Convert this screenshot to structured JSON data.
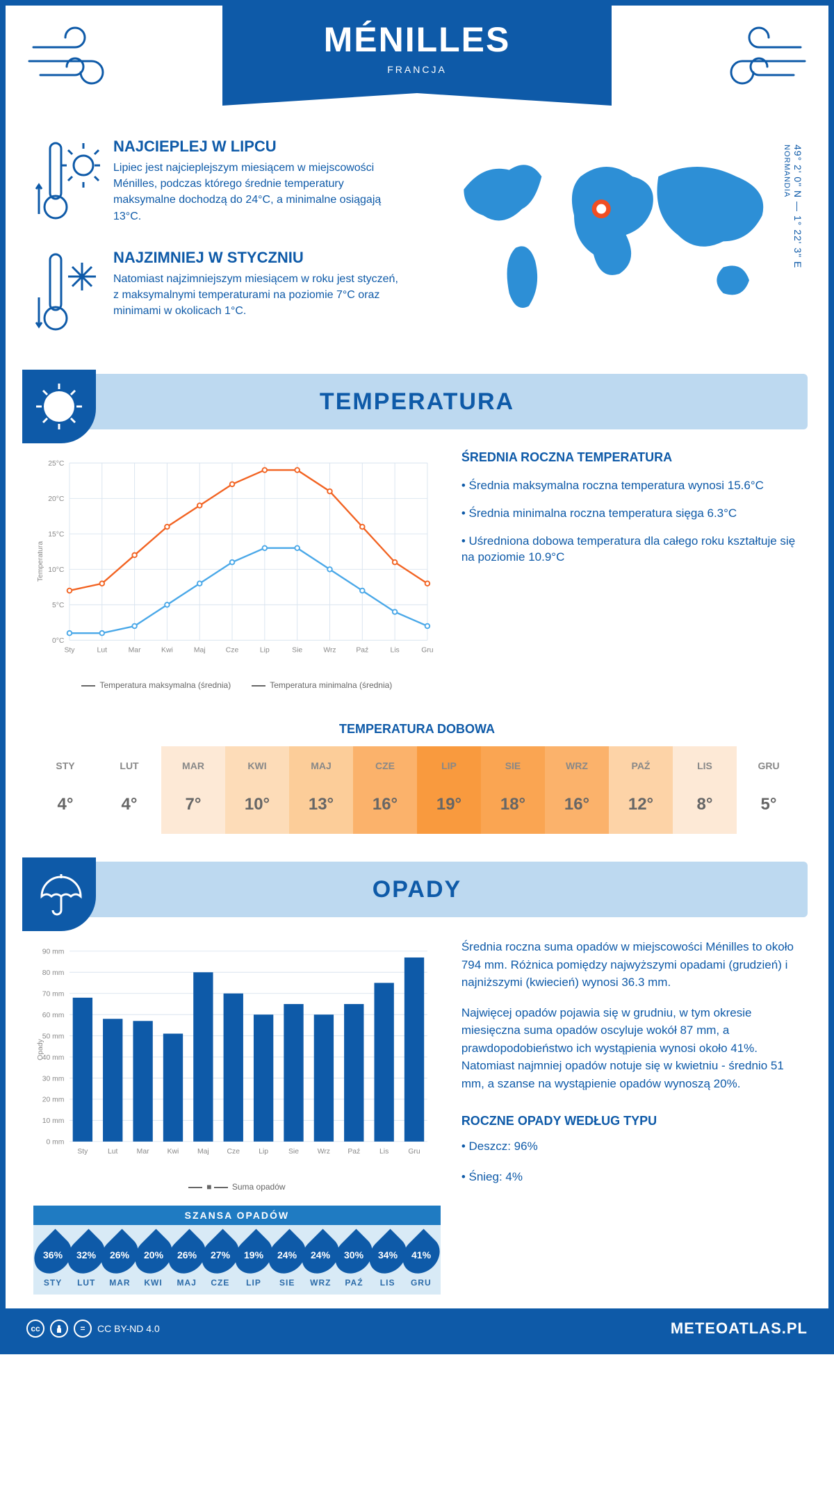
{
  "header": {
    "city": "MÉNILLES",
    "country": "FRANCJA"
  },
  "coords": {
    "region": "NORMANDIA",
    "lat": "49° 2' 0\" N",
    "lon": "1° 22' 3\" E"
  },
  "facts": {
    "warm_title": "NAJCIEPLEJ W LIPCU",
    "warm_text": "Lipiec jest najcieplejszym miesiącem w miejscowości Ménilles, podczas którego średnie temperatury maksymalne dochodzą do 24°C, a minimalne osiągają 13°C.",
    "cold_title": "NAJZIMNIEJ W STYCZNIU",
    "cold_text": "Natomiast najzimniejszym miesiącem w roku jest styczeń, z maksymalnymi temperaturami na poziomie 7°C oraz minimami w okolicach 1°C."
  },
  "section_temp": "TEMPERATURA",
  "section_precip": "OPADY",
  "months_short": [
    "Sty",
    "Lut",
    "Mar",
    "Kwi",
    "Maj",
    "Cze",
    "Lip",
    "Sie",
    "Wrz",
    "Paź",
    "Lis",
    "Gru"
  ],
  "months_caps": [
    "STY",
    "LUT",
    "MAR",
    "KWI",
    "MAJ",
    "CZE",
    "LIP",
    "SIE",
    "WRZ",
    "PAŹ",
    "LIS",
    "GRU"
  ],
  "temp_chart": {
    "type": "line",
    "y_label": "Temperatura",
    "ylim": [
      0,
      25
    ],
    "ytick_step": 5,
    "grid_color": "#d9e4ef",
    "max_color": "#f26322",
    "min_color": "#4aa8e8",
    "max_values": [
      7,
      8,
      12,
      16,
      19,
      22,
      24,
      24,
      21,
      16,
      11,
      8
    ],
    "min_values": [
      1,
      1,
      2,
      5,
      8,
      11,
      13,
      13,
      10,
      7,
      4,
      2
    ],
    "legend_max": "Temperatura maksymalna (średnia)",
    "legend_min": "Temperatura minimalna (średnia)"
  },
  "temp_info": {
    "heading": "ŚREDNIA ROCZNA TEMPERATURA",
    "line1": "• Średnia maksymalna roczna temperatura wynosi 15.6°C",
    "line2": "• Średnia minimalna roczna temperatura sięga 6.3°C",
    "line3": "• Uśredniona dobowa temperatura dla całego roku kształtuje się na poziomie 10.9°C"
  },
  "daily": {
    "title": "TEMPERATURA DOBOWA",
    "values": [
      "4°",
      "4°",
      "7°",
      "10°",
      "13°",
      "16°",
      "19°",
      "18°",
      "16°",
      "12°",
      "8°",
      "5°"
    ],
    "colors": [
      "#ffffff",
      "#ffffff",
      "#fde9d6",
      "#fddcb8",
      "#fccd99",
      "#fbb26b",
      "#f99a3e",
      "#faa552",
      "#fbb26b",
      "#fdd3a7",
      "#fde9d6",
      "#ffffff"
    ]
  },
  "precip_chart": {
    "type": "bar",
    "y_label": "Opady",
    "ylim": [
      0,
      90
    ],
    "ytick_step": 10,
    "bar_color": "#0e5aa8",
    "grid_color": "#d9e4ef",
    "values": [
      68,
      58,
      57,
      51,
      80,
      70,
      60,
      65,
      60,
      65,
      75,
      87
    ],
    "legend": "Suma opadów"
  },
  "precip_info": {
    "p1": "Średnia roczna suma opadów w miejscowości Ménilles to około 794 mm. Różnica pomiędzy najwyższymi opadami (grudzień) i najniższymi (kwiecień) wynosi 36.3 mm.",
    "p2": "Najwięcej opadów pojawia się w grudniu, w tym okresie miesięczna suma opadów oscyluje wokół 87 mm, a prawdopodobieństwo ich wystąpienia wynosi około 41%. Natomiast najmniej opadów notuje się w kwietniu - średnio 51 mm, a szanse na wystąpienie opadów wynoszą 20%.",
    "type_heading": "ROCZNE OPADY WEDŁUG TYPU",
    "type_rain": "• Deszcz: 96%",
    "type_snow": "• Śnieg: 4%"
  },
  "chance": {
    "title": "SZANSA OPADÓW",
    "values": [
      "36%",
      "32%",
      "26%",
      "20%",
      "26%",
      "27%",
      "19%",
      "24%",
      "24%",
      "30%",
      "34%",
      "41%"
    ]
  },
  "footer": {
    "license": "CC BY-ND 4.0",
    "site": "METEOATLAS.PL"
  }
}
